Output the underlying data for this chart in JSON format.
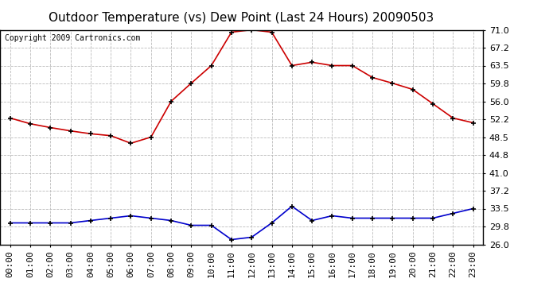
{
  "title": "Outdoor Temperature (vs) Dew Point (Last 24 Hours) 20090503",
  "copyright": "Copyright 2009 Cartronics.com",
  "yticks": [
    26.0,
    29.8,
    33.5,
    37.2,
    41.0,
    44.8,
    48.5,
    52.2,
    56.0,
    59.8,
    63.5,
    67.2,
    71.0
  ],
  "ylim": [
    26.0,
    71.0
  ],
  "xtick_labels": [
    "00:00",
    "01:00",
    "02:00",
    "03:00",
    "04:00",
    "05:00",
    "06:00",
    "07:00",
    "08:00",
    "09:00",
    "10:00",
    "11:00",
    "12:00",
    "13:00",
    "14:00",
    "15:00",
    "16:00",
    "17:00",
    "18:00",
    "19:00",
    "20:00",
    "21:00",
    "22:00",
    "23:00"
  ],
  "temp_color": "#cc0000",
  "dew_color": "#0000cc",
  "background_color": "#ffffff",
  "plot_bg_color": "#ffffff",
  "grid_color": "#bbbbbb",
  "temp_values": [
    52.5,
    51.3,
    50.5,
    49.8,
    49.2,
    48.8,
    47.2,
    48.5,
    56.0,
    59.8,
    63.5,
    70.5,
    71.0,
    70.5,
    63.5,
    64.2,
    63.5,
    63.5,
    61.0,
    59.8,
    58.5,
    55.5,
    52.5,
    51.5
  ],
  "dew_values": [
    30.5,
    30.5,
    30.5,
    30.5,
    31.0,
    31.5,
    32.0,
    31.5,
    31.0,
    30.0,
    30.0,
    27.0,
    27.5,
    30.5,
    34.0,
    31.0,
    32.0,
    31.5,
    31.5,
    31.5,
    31.5,
    31.5,
    32.5,
    33.5
  ],
  "title_fontsize": 11,
  "tick_fontsize": 8,
  "copyright_fontsize": 7
}
